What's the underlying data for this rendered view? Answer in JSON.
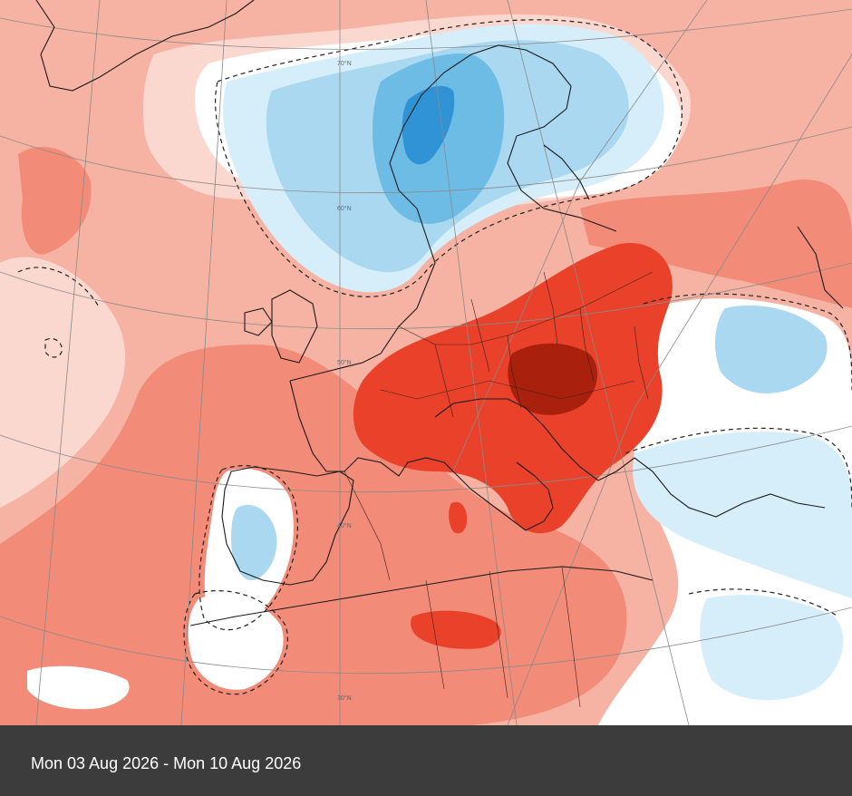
{
  "caption": {
    "date_range": "Mon 03 Aug 2026 - Mon 10 Aug 2026"
  },
  "map": {
    "parallels": [
      "30°N",
      "40°N",
      "50°N",
      "60°N",
      "70°N"
    ],
    "colors": {
      "deep_red": "#a9200c",
      "strong_red": "#e9412a",
      "mid_red": "#f28b77",
      "light_red": "#f6b3a3",
      "pale_red": "#fbd8cf",
      "neutral": "#ffffff",
      "pale_blue": "#d6eef9",
      "light_blue": "#a9d8f0",
      "mid_blue": "#6cbce6",
      "deep_blue": "#2f93d6",
      "coastline": "#1a1a1a",
      "graticule": "#8a8a8a"
    }
  }
}
